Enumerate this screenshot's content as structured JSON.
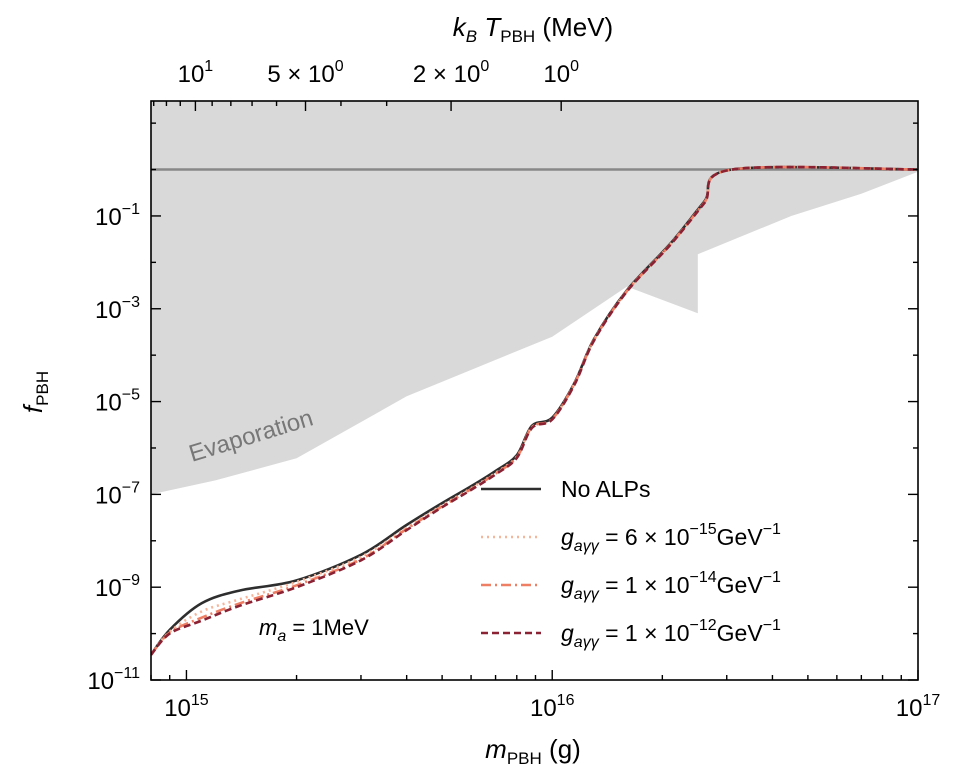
{
  "chart_data": {
    "type": "line",
    "xscale": "log",
    "yscale": "log",
    "xlim": [
      800000000000000.0,
      1e+17
    ],
    "ylim": [
      1e-11,
      30
    ],
    "xlabel": "m_PBH (g)",
    "ylabel": "f_PBH",
    "top_axis_label": "k_B T_PBH (MeV)",
    "x_ticks": [
      {
        "value": 1000000000000000.0,
        "exp": "15"
      },
      {
        "value": 1e+16,
        "exp": "16"
      },
      {
        "value": 1e+17,
        "exp": "17"
      }
    ],
    "y_ticks": [
      {
        "value": 0.1,
        "exp": "−1"
      },
      {
        "value": 0.001,
        "exp": "−3"
      },
      {
        "value": 1e-05,
        "exp": "−5"
      },
      {
        "value": 1e-07,
        "exp": "−7"
      },
      {
        "value": 1e-09,
        "exp": "−9"
      },
      {
        "value": 1e-11,
        "exp": "−11"
      }
    ],
    "top_ticks": [
      {
        "T": 10,
        "text": "10",
        "exp": "1"
      },
      {
        "T": 5,
        "text": "5 × 10",
        "exp": "0"
      },
      {
        "T": 2,
        "text": "2 × 10",
        "exp": "0"
      },
      {
        "T": 1,
        "text": "10",
        "exp": "0"
      }
    ],
    "top_axis_mass_per_MeV_inv": 1.058e+16,
    "hline": {
      "y": 1,
      "color": "#888888"
    },
    "evaporation_region": {
      "label": "Evaporation",
      "color": "#d9d9d9",
      "boundary": [
        [
          800000000000000.0,
          1e-07
        ],
        [
          1200000000000000.0,
          2e-07
        ],
        [
          2000000000000000.0,
          6e-07
        ],
        [
          4000000000000000.0,
          1.3e-05
        ],
        [
          1e+16,
          0.00025
        ],
        [
          2.5e+16,
          0.0008
        ],
        [
          1.6e+16,
          0.003
        ],
        [
          2.5e+16,
          0.015
        ],
        [
          4.5e+16,
          0.1
        ],
        [
          7e+16,
          0.3
        ],
        [
          1e+17,
          0.9
        ]
      ]
    },
    "series": [
      {
        "name": "No ALPs",
        "color": "#2e2e2e",
        "dash": "solid",
        "points": [
          [
            800000000000000.0,
            3.5e-11
          ],
          [
            900000000000000.0,
            1.2e-10
          ],
          [
            1100000000000000.0,
            4.5e-10
          ],
          [
            1400000000000000.0,
            8.5e-10
          ],
          [
            2000000000000000.0,
            1.4e-09
          ],
          [
            3000000000000000.0,
            5e-09
          ],
          [
            4000000000000000.0,
            2.2e-08
          ],
          [
            5000000000000000.0,
            6.5e-08
          ],
          [
            6000000000000000.0,
            1.5e-07
          ],
          [
            7000000000000000.0,
            3.2e-07
          ],
          [
            8000000000000000.0,
            7e-07
          ],
          [
            8800000000000000.0,
            3e-06
          ],
          [
            1e+16,
            4.5e-06
          ],
          [
            1.15e+16,
            2.5e-05
          ],
          [
            1.3e+16,
            0.00022
          ],
          [
            1.6e+16,
            0.0025
          ],
          [
            2.1e+16,
            0.025
          ],
          [
            2.6e+16,
            0.2
          ],
          [
            3.1e+16,
            1
          ],
          [
            1e+17,
            1
          ]
        ]
      },
      {
        "name_parts": [
          "g",
          "aγγ",
          " = 6 × 10",
          "−15",
          "GeV",
          "−1"
        ],
        "color": "#f6b49a",
        "dash": "dotted",
        "points": [
          [
            800000000000000.0,
            3.5e-11
          ],
          [
            900000000000000.0,
            1.1e-10
          ],
          [
            1100000000000000.0,
            3e-10
          ],
          [
            1400000000000000.0,
            5.5e-10
          ],
          [
            2000000000000000.0,
            1.3e-09
          ],
          [
            3000000000000000.0,
            4.5e-09
          ],
          [
            4000000000000000.0,
            1.9e-08
          ],
          [
            5000000000000000.0,
            5.8e-08
          ],
          [
            6000000000000000.0,
            1.35e-07
          ],
          [
            7000000000000000.0,
            2.9e-07
          ],
          [
            8000000000000000.0,
            6.5e-07
          ],
          [
            8800000000000000.0,
            2.8e-06
          ],
          [
            1e+16,
            4.2e-06
          ],
          [
            1.15e+16,
            2.4e-05
          ],
          [
            1.3e+16,
            0.00021
          ],
          [
            1.6e+16,
            0.0024
          ],
          [
            2.1e+16,
            0.024
          ],
          [
            2.6e+16,
            0.19
          ],
          [
            3.1e+16,
            1
          ],
          [
            1e+17,
            1
          ]
        ]
      },
      {
        "name_parts": [
          "g",
          "aγγ",
          " = 1 × 10",
          "−14",
          "GeV",
          "−1"
        ],
        "color": "#ee7e64",
        "dash": "dashdot",
        "points": [
          [
            800000000000000.0,
            3.5e-11
          ],
          [
            900000000000000.0,
            1.05e-10
          ],
          [
            1100000000000000.0,
            2.2e-10
          ],
          [
            1400000000000000.0,
            4.5e-10
          ],
          [
            2000000000000000.0,
            1.1e-09
          ],
          [
            3000000000000000.0,
            4e-09
          ],
          [
            4000000000000000.0,
            1.8e-08
          ],
          [
            5000000000000000.0,
            5.5e-08
          ],
          [
            6000000000000000.0,
            1.3e-07
          ],
          [
            7000000000000000.0,
            2.8e-07
          ],
          [
            8000000000000000.0,
            6.3e-07
          ],
          [
            8800000000000000.0,
            2.8e-06
          ],
          [
            1e+16,
            4.2e-06
          ],
          [
            1.15e+16,
            2.4e-05
          ],
          [
            1.3e+16,
            0.00021
          ],
          [
            1.6e+16,
            0.0024
          ],
          [
            2.1e+16,
            0.024
          ],
          [
            2.6e+16,
            0.19
          ],
          [
            3.1e+16,
            1
          ],
          [
            1e+17,
            1
          ]
        ]
      },
      {
        "name_parts": [
          "g",
          "aγγ",
          " = 1 × 10",
          "−12",
          "GeV",
          "−1"
        ],
        "color": "#8b2233",
        "dash": "dashed",
        "points": [
          [
            800000000000000.0,
            3.5e-11
          ],
          [
            900000000000000.0,
            1e-10
          ],
          [
            1100000000000000.0,
            1.9e-10
          ],
          [
            1400000000000000.0,
            4e-10
          ],
          [
            2000000000000000.0,
            1e-09
          ],
          [
            3000000000000000.0,
            3.8e-09
          ],
          [
            4000000000000000.0,
            1.7e-08
          ],
          [
            5000000000000000.0,
            5.3e-08
          ],
          [
            6000000000000000.0,
            1.25e-07
          ],
          [
            7000000000000000.0,
            2.7e-07
          ],
          [
            8000000000000000.0,
            6.1e-07
          ],
          [
            8800000000000000.0,
            2.7e-06
          ],
          [
            1e+16,
            4.1e-06
          ],
          [
            1.15e+16,
            2.3e-05
          ],
          [
            1.3e+16,
            0.000205
          ],
          [
            1.6e+16,
            0.00235
          ],
          [
            2.1e+16,
            0.0235
          ],
          [
            2.6e+16,
            0.185
          ],
          [
            3.1e+16,
            1
          ],
          [
            1e+17,
            1
          ]
        ]
      }
    ],
    "annotation": {
      "pre": "m",
      "sub": "a",
      "post": " = 1MeV"
    },
    "legend_position": "bottom-right"
  }
}
